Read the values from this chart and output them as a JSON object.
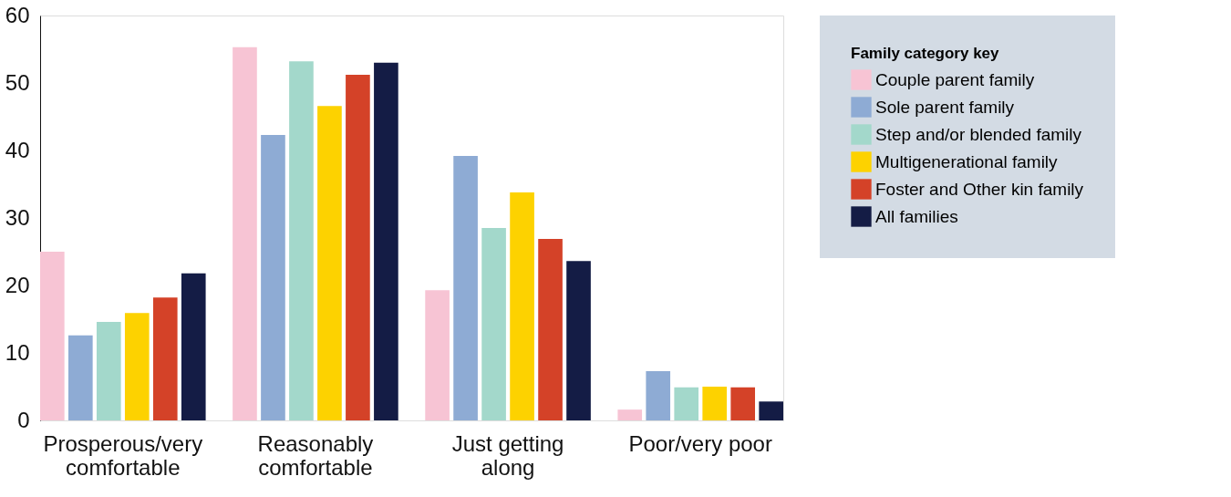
{
  "chart_data": {
    "type": "bar",
    "categories": [
      "Prosperous/very comfortable",
      "Reasonably comfortable",
      "Just getting along",
      "Poor/very poor"
    ],
    "series": [
      {
        "name": "Couple parent family",
        "color": "#f7c4d4",
        "values": [
          25.0,
          55.3,
          19.3,
          1.6
        ]
      },
      {
        "name": "Sole parent family",
        "color": "#8eabd4",
        "values": [
          12.6,
          42.3,
          39.2,
          7.3
        ]
      },
      {
        "name": "Step and/or blended family",
        "color": "#a3d8cb",
        "values": [
          14.6,
          53.2,
          28.5,
          4.9
        ]
      },
      {
        "name": "Multigenerational family",
        "color": "#fdd200",
        "values": [
          15.9,
          46.6,
          33.8,
          5.0
        ]
      },
      {
        "name": "Foster and Other kin family",
        "color": "#d44228",
        "values": [
          18.2,
          51.2,
          26.9,
          4.9
        ]
      },
      {
        "name": "All families",
        "color": "#141c45",
        "values": [
          21.8,
          53.0,
          23.6,
          2.8
        ]
      }
    ],
    "legend_title": "Family category key",
    "legend": "top right",
    "ylim": [
      0,
      60
    ],
    "yticks": [
      0,
      10,
      20,
      30,
      40,
      50,
      60
    ],
    "grid": false
  }
}
